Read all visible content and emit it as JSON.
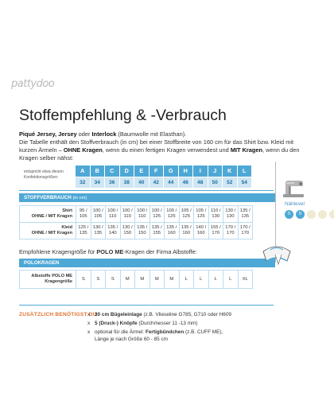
{
  "logo": "pattydoo",
  "title": "Stoffempfehlung & -Verbrauch",
  "intro": {
    "p1_bold1": "Piqué Jersey, Jersey",
    "p1_txt1": " oder ",
    "p1_bold2": "Interlock",
    "p1_txt2": " (Baumwolle mit Elasthan).",
    "p2": "Die Tabelle enthält den Stoffverbrauch (in cm) bei einer Stoffbreite von 160 cm für das Shirt bzw. Kleid mit kurzen Ärmeln – ",
    "p2_bold": "OHNE Kragen",
    "p2_b": ", wenn du einen fertigen Kragen verwendest und ",
    "p2_bold2": "MIT Kragen",
    "p2_c": ", wenn du den Kragen selber nähst:"
  },
  "konf_label": "entspricht etwa diesen Konfektionsgrößen:",
  "sizes": {
    "letters": [
      "A",
      "B",
      "C",
      "D",
      "E",
      "F",
      "G",
      "H",
      "I",
      "J",
      "K",
      "L"
    ],
    "numbers": [
      "32",
      "34",
      "36",
      "38",
      "40",
      "42",
      "44",
      "46",
      "48",
      "50",
      "52",
      "54"
    ]
  },
  "stoff": {
    "header": "STOFFVERBRAUCH",
    "header_small": "(in cm)",
    "rows": [
      {
        "label1": "Shirt",
        "label2": "OHNE / MIT Kragen",
        "cells": [
          [
            "95 /",
            "105"
          ],
          [
            "100 /",
            "105"
          ],
          [
            "100 /",
            "110"
          ],
          [
            "100 /",
            "110"
          ],
          [
            "100 /",
            "110"
          ],
          [
            "100 /",
            "125"
          ],
          [
            "100 /",
            "125"
          ],
          [
            "105 /",
            "125"
          ],
          [
            "105 /",
            "125"
          ],
          [
            "110 /",
            "130"
          ],
          [
            "130 /",
            "130"
          ],
          [
            "135 /",
            "135"
          ]
        ]
      },
      {
        "label1": "Kleid",
        "label2": "OHNE / MIT Kragen",
        "cells": [
          [
            "125 /",
            "135"
          ],
          [
            "130 /",
            "135"
          ],
          [
            "135 /",
            "140"
          ],
          [
            "130 /",
            "150"
          ],
          [
            "135 /",
            "150"
          ],
          [
            "135 /",
            "155"
          ],
          [
            "135 /",
            "160"
          ],
          [
            "135 /",
            "160"
          ],
          [
            "140 /",
            "160"
          ],
          [
            "155 /",
            "170"
          ],
          [
            "170 /",
            "170"
          ],
          [
            "170 /",
            "170"
          ]
        ]
      }
    ]
  },
  "midline_pre": "Empfohlene Kragengröße für ",
  "midline_bold": "POLO ME",
  "midline_post": "-Kragen der Firma Albstoffe:",
  "polo": {
    "header": "POLOKRAGEN",
    "label1": "Albstoffe POLO ME",
    "label2": "Kragengröße",
    "cells": [
      "S",
      "S",
      "S",
      "M",
      "M",
      "M",
      "M",
      "L",
      "L",
      "L",
      "L",
      "XL"
    ]
  },
  "zusatz": {
    "title": "ZUSÄTZLICH BENÖTIGST DU",
    "items": [
      {
        "x": "x",
        "bold": "30 cm Bügeleinlage",
        "txt": " (z.B. Vlieseline G785, G710 oder H609"
      },
      {
        "x": "x",
        "bold": "5 (Druck-) Knöpfe",
        "txt": " (Durchmesser 11 -13 mm)"
      },
      {
        "x": "x",
        "bold": "",
        "txt": "optional für die Ärmel: ",
        "bold2": "Fertigbündchen",
        "txt2": " (z.B. CUFF ME),"
      },
      {
        "x": "",
        "bold": "",
        "txt": "Länge je nach Größe 60 - 85 cm"
      }
    ]
  },
  "naehlevel": {
    "label": "Nählevel",
    "dots": [
      "II",
      "II",
      "",
      "",
      ""
    ]
  },
  "colors": {
    "accent": "#4ea8d6",
    "orange": "#e1732e"
  }
}
